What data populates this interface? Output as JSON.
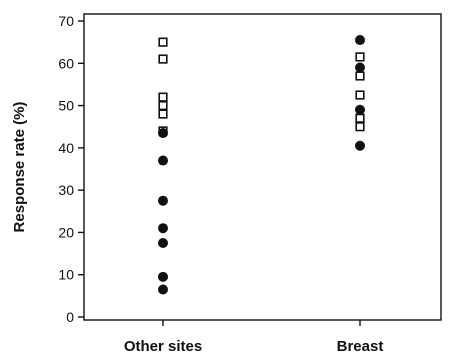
{
  "chart_data": {
    "type": "scatter",
    "title": "",
    "xlabel": "",
    "ylabel": "Response rate (%)",
    "ylim": [
      0,
      70
    ],
    "yticks": [
      0,
      10,
      20,
      30,
      40,
      50,
      60,
      70
    ],
    "categories": [
      "Other sites",
      "Breast"
    ],
    "grid": false,
    "legend": "none",
    "series": [
      {
        "marker": "open-square",
        "points": [
          {
            "category": "Other sites",
            "y": 65
          },
          {
            "category": "Other sites",
            "y": 61
          },
          {
            "category": "Other sites",
            "y": 52
          },
          {
            "category": "Other sites",
            "y": 50
          },
          {
            "category": "Other sites",
            "y": 48
          },
          {
            "category": "Other sites",
            "y": 44
          },
          {
            "category": "Breast",
            "y": 61.5
          },
          {
            "category": "Breast",
            "y": 57
          },
          {
            "category": "Breast",
            "y": 52.5
          },
          {
            "category": "Breast",
            "y": 47
          },
          {
            "category": "Breast",
            "y": 45
          }
        ]
      },
      {
        "marker": "filled-circle",
        "points": [
          {
            "category": "Other sites",
            "y": 43.5
          },
          {
            "category": "Other sites",
            "y": 37
          },
          {
            "category": "Other sites",
            "y": 27.5
          },
          {
            "category": "Other sites",
            "y": 21
          },
          {
            "category": "Other sites",
            "y": 17.5
          },
          {
            "category": "Other sites",
            "y": 9.5
          },
          {
            "category": "Other sites",
            "y": 6.5
          },
          {
            "category": "Breast",
            "y": 65.5
          },
          {
            "category": "Breast",
            "y": 59
          },
          {
            "category": "Breast",
            "y": 49
          },
          {
            "category": "Breast",
            "y": 40.5
          }
        ]
      }
    ]
  }
}
